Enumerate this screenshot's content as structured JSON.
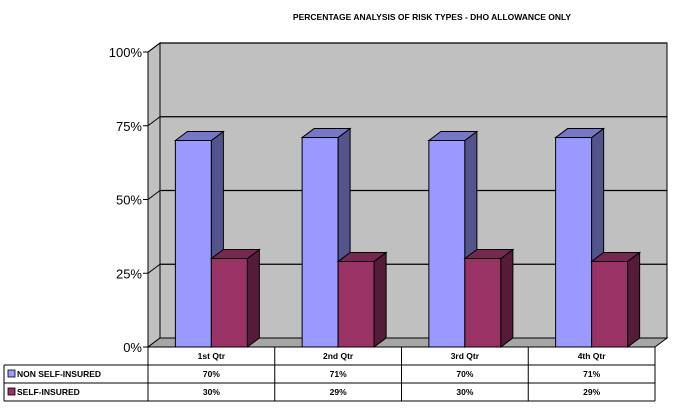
{
  "chart_data": {
    "type": "bar",
    "title": "PERCENTAGE ANALYSIS OF RISK TYPES - DHO ALLOWANCE ONLY",
    "categories": [
      "1st Qtr",
      "2nd Qtr",
      "3rd Qtr",
      "4th Qtr"
    ],
    "series": [
      {
        "name": "NON SELF-INSURED",
        "values": [
          70,
          71,
          70,
          71
        ],
        "labels": [
          "70%",
          "71%",
          "70%",
          "71%"
        ],
        "color": "#9999ff"
      },
      {
        "name": "SELF-INSURED",
        "values": [
          30,
          29,
          30,
          29
        ],
        "labels": [
          "30%",
          "29%",
          "30%",
          "29%"
        ],
        "color": "#993366"
      }
    ],
    "yticks": [
      "0%",
      "25%",
      "50%",
      "75%",
      "100%"
    ],
    "ylim": [
      0,
      100
    ],
    "grid": true,
    "legend": "data-table",
    "wall_color": "#c0c0c0"
  }
}
